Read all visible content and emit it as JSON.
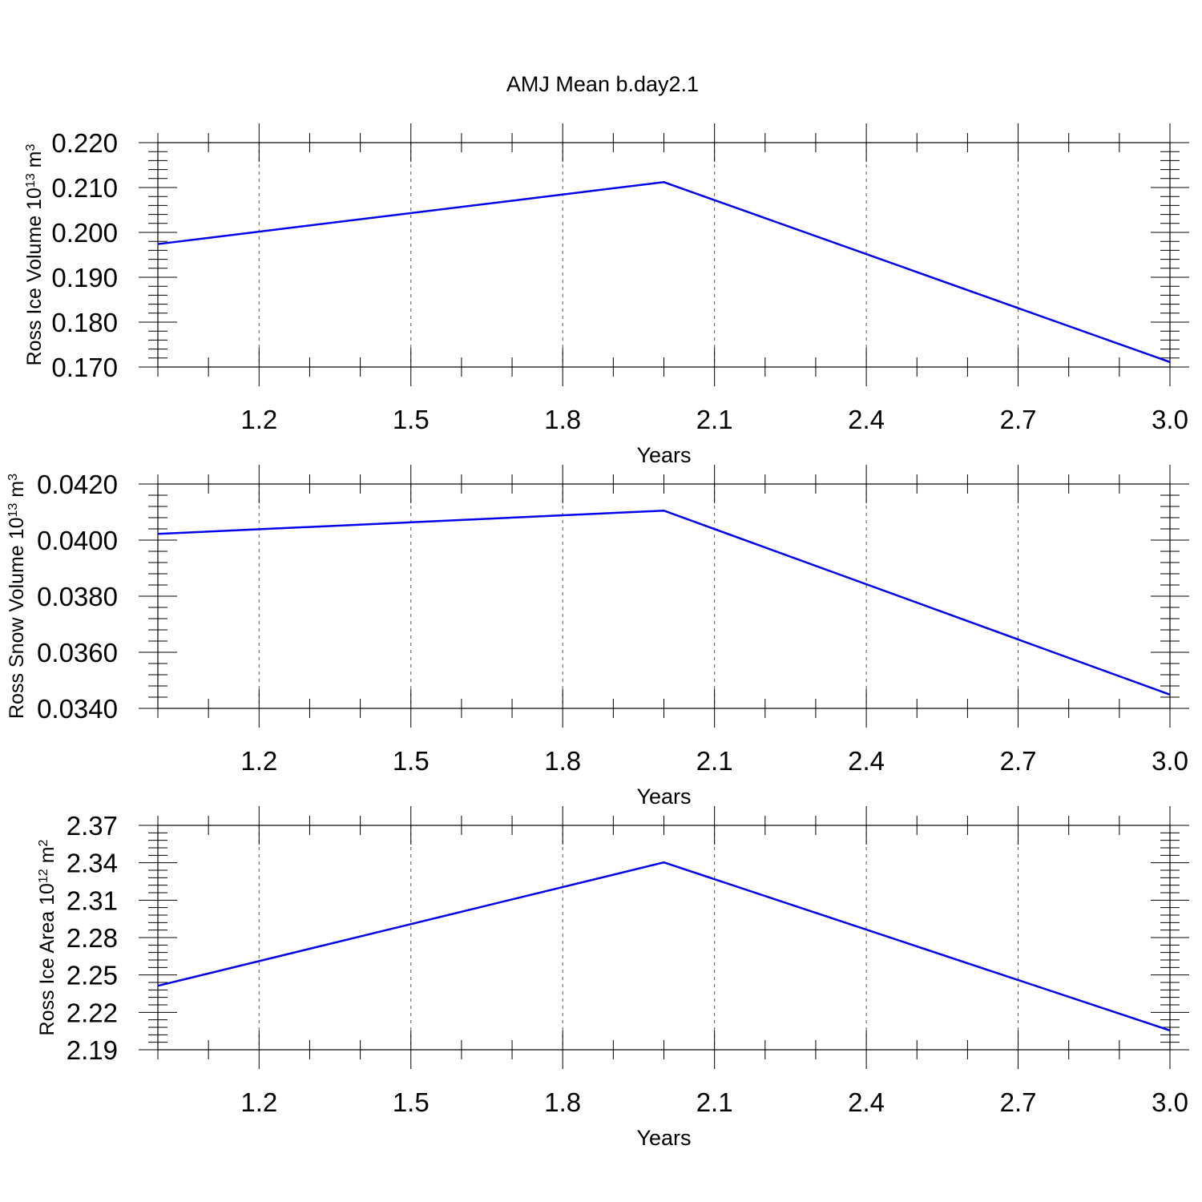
{
  "title": "AMJ Mean b.day2.1",
  "colors": {
    "line": "#0000ee",
    "axis": "#000000",
    "grid": "#555555"
  },
  "chart_data": [
    {
      "type": "line",
      "ylabel": {
        "main": "Ross Ice Volume 10",
        "exp1": "13",
        "unit": " m",
        "exp2": "3"
      },
      "xlabel": "Years",
      "x": [
        1.0,
        2.0,
        3.0
      ],
      "values": [
        0.1974,
        0.2112,
        0.1711
      ],
      "xlim": [
        1.0,
        3.0
      ],
      "ylim": [
        0.17,
        0.22
      ],
      "xticks": [
        1.2,
        1.5,
        1.8,
        2.1,
        2.4,
        2.7,
        3.0
      ],
      "xtick_labels": [
        "1.2",
        "1.5",
        "1.8",
        "2.1",
        "2.4",
        "2.7",
        "3.0"
      ],
      "yticks": [
        0.17,
        0.18,
        0.19,
        0.2,
        0.21,
        0.22
      ],
      "ytick_labels": [
        "0.170",
        "0.180",
        "0.190",
        "0.200",
        "0.210",
        "0.220"
      ],
      "yminor_step": 0.002,
      "xminor_step": 0.1,
      "grid": "x-major-dashed"
    },
    {
      "type": "line",
      "ylabel": {
        "main": "Ross Snow Volume 10",
        "exp1": "13",
        "unit": " m",
        "exp2": "3"
      },
      "xlabel": "Years",
      "x": [
        1.0,
        2.0,
        3.0
      ],
      "values": [
        0.04022,
        0.04105,
        0.03449
      ],
      "xlim": [
        1.0,
        3.0
      ],
      "ylim": [
        0.034,
        0.042
      ],
      "xticks": [
        1.2,
        1.5,
        1.8,
        2.1,
        2.4,
        2.7,
        3.0
      ],
      "xtick_labels": [
        "1.2",
        "1.5",
        "1.8",
        "2.1",
        "2.4",
        "2.7",
        "3.0"
      ],
      "yticks": [
        0.034,
        0.036,
        0.038,
        0.04,
        0.042
      ],
      "ytick_labels": [
        "0.0340",
        "0.0360",
        "0.0380",
        "0.0400",
        "0.0420"
      ],
      "yminor_step": 0.0004,
      "xminor_step": 0.1,
      "grid": "x-major-dashed"
    },
    {
      "type": "line",
      "ylabel": {
        "main": "Ross Ice Area 10",
        "exp1": "12",
        "unit": " m",
        "exp2": "2"
      },
      "xlabel": "Years",
      "x": [
        1.0,
        2.0,
        3.0
      ],
      "values": [
        2.2413,
        2.3403,
        2.2055
      ],
      "xlim": [
        1.0,
        3.0
      ],
      "ylim": [
        2.19,
        2.37
      ],
      "xticks": [
        1.2,
        1.5,
        1.8,
        2.1,
        2.4,
        2.7,
        3.0
      ],
      "xtick_labels": [
        "1.2",
        "1.5",
        "1.8",
        "2.1",
        "2.4",
        "2.7",
        "3.0"
      ],
      "yticks": [
        2.19,
        2.22,
        2.25,
        2.28,
        2.31,
        2.34,
        2.37
      ],
      "ytick_labels": [
        "2.19",
        "2.22",
        "2.25",
        "2.28",
        "2.31",
        "2.34",
        "2.37"
      ],
      "yminor_step": 0.006,
      "xminor_step": 0.1,
      "grid": "x-major-dashed"
    }
  ]
}
